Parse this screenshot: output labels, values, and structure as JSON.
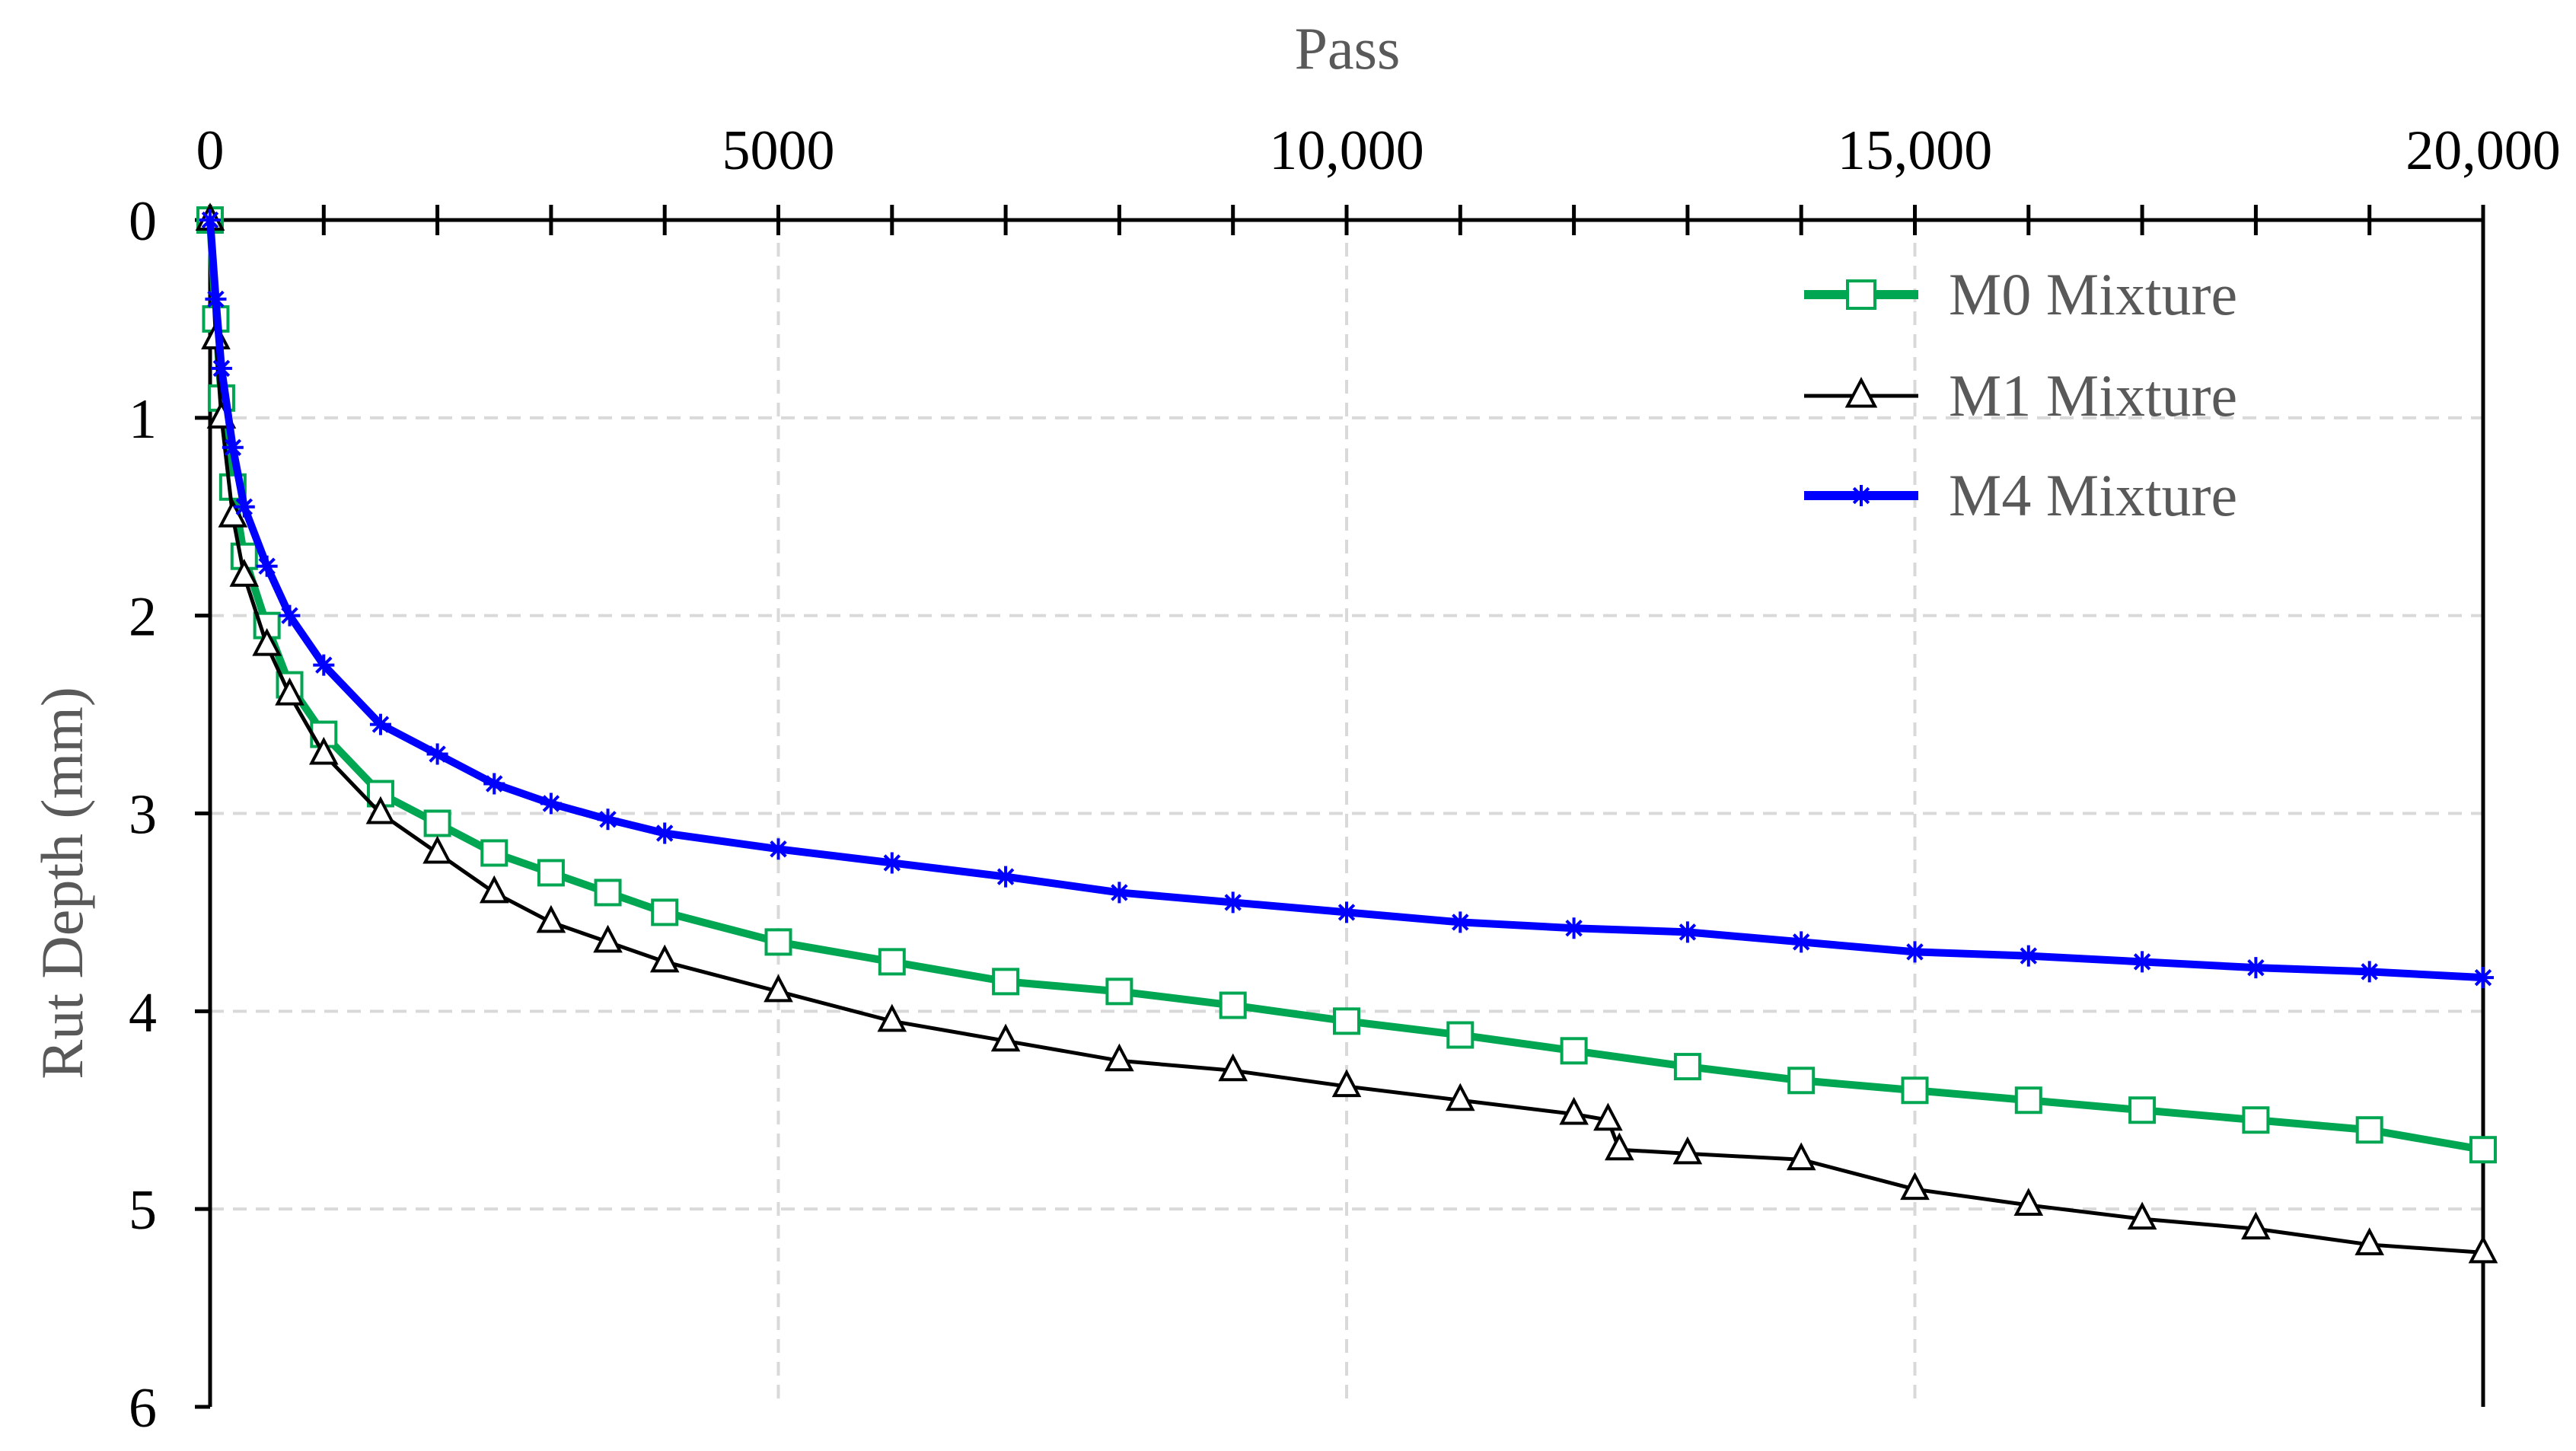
{
  "chart_data": {
    "type": "line",
    "title": "",
    "xlabel": "Pass",
    "ylabel": "Rut Depth (mm)",
    "xlim": [
      0,
      20000
    ],
    "ylim": [
      0,
      6
    ],
    "y_inverted": true,
    "x_axis_position": "top",
    "grid": true,
    "legend_position": "top-right",
    "x_ticks": [
      {
        "value": 0,
        "label": "0"
      },
      {
        "value": 5000,
        "label": "5000"
      },
      {
        "value": 10000,
        "label": "10,000"
      },
      {
        "value": 15000,
        "label": "15,000"
      },
      {
        "value": 20000,
        "label": "20,000"
      }
    ],
    "y_ticks": [
      {
        "value": 0,
        "label": "0"
      },
      {
        "value": 1,
        "label": "1"
      },
      {
        "value": 2,
        "label": "2"
      },
      {
        "value": 3,
        "label": "3"
      },
      {
        "value": 4,
        "label": "4"
      },
      {
        "value": 5,
        "label": "5"
      },
      {
        "value": 6,
        "label": "6"
      }
    ],
    "series": [
      {
        "name": "M0 Mixture",
        "color": "#00a651",
        "marker": "square",
        "x": [
          0,
          50,
          100,
          200,
          300,
          500,
          700,
          1000,
          1500,
          2000,
          2500,
          3000,
          3500,
          4000,
          5000,
          6000,
          7000,
          8000,
          9000,
          10000,
          11000,
          12000,
          13000,
          14000,
          15000,
          16000,
          17000,
          18000,
          19000,
          20000
        ],
        "values": [
          0,
          0.5,
          0.9,
          1.35,
          1.7,
          2.05,
          2.35,
          2.6,
          2.9,
          3.05,
          3.2,
          3.3,
          3.4,
          3.5,
          3.65,
          3.75,
          3.85,
          3.9,
          3.97,
          4.05,
          4.12,
          4.2,
          4.28,
          4.35,
          4.4,
          4.45,
          4.5,
          4.55,
          4.6,
          4.7
        ]
      },
      {
        "name": "M1 Mixture",
        "color": "#000000",
        "marker": "triangle",
        "x": [
          0,
          50,
          100,
          200,
          300,
          500,
          700,
          1000,
          1500,
          2000,
          2500,
          3000,
          3500,
          4000,
          5000,
          6000,
          7000,
          8000,
          9000,
          10000,
          11000,
          12000,
          12300,
          12400,
          13000,
          14000,
          15000,
          16000,
          17000,
          18000,
          19000,
          20000
        ],
        "values": [
          0,
          0.6,
          1.0,
          1.5,
          1.8,
          2.15,
          2.4,
          2.7,
          3.0,
          3.2,
          3.4,
          3.55,
          3.65,
          3.75,
          3.9,
          4.05,
          4.15,
          4.25,
          4.3,
          4.38,
          4.45,
          4.52,
          4.55,
          4.7,
          4.72,
          4.75,
          4.9,
          4.98,
          5.05,
          5.1,
          5.18,
          5.22
        ]
      },
      {
        "name": "M4 Mixture",
        "color": "#0000ff",
        "marker": "star",
        "x": [
          0,
          50,
          100,
          200,
          300,
          500,
          700,
          1000,
          1500,
          2000,
          2500,
          3000,
          3500,
          4000,
          5000,
          6000,
          7000,
          8000,
          9000,
          10000,
          11000,
          12000,
          13000,
          14000,
          15000,
          16000,
          17000,
          18000,
          19000,
          20000
        ],
        "values": [
          0,
          0.4,
          0.75,
          1.15,
          1.45,
          1.75,
          2.0,
          2.25,
          2.55,
          2.7,
          2.85,
          2.95,
          3.03,
          3.1,
          3.18,
          3.25,
          3.32,
          3.4,
          3.45,
          3.5,
          3.55,
          3.58,
          3.6,
          3.65,
          3.7,
          3.72,
          3.75,
          3.78,
          3.8,
          3.83
        ]
      }
    ]
  }
}
